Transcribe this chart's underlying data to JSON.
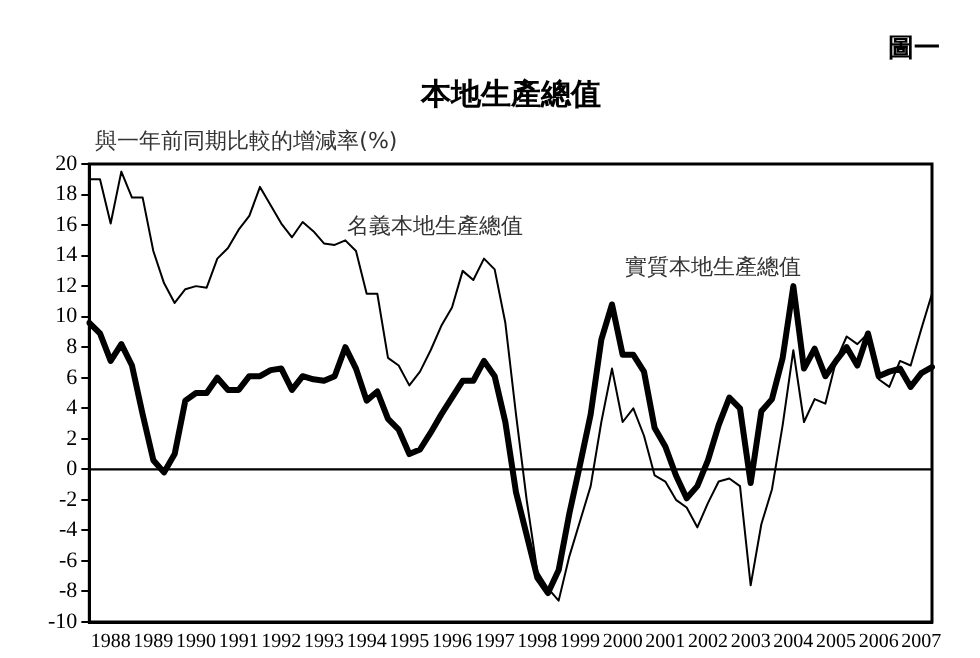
{
  "chart_data": {
    "type": "line",
    "title": "本地生產總值",
    "ylabel": "與一年前同期比較的增減率(%)",
    "annotations": [
      "圖一"
    ],
    "categories": [
      null,
      null,
      "1988",
      null,
      null,
      null,
      "1989",
      null,
      null,
      null,
      "1990",
      null,
      null,
      null,
      "1991",
      null,
      null,
      null,
      "1992",
      null,
      null,
      null,
      "1993",
      null,
      null,
      null,
      "1994",
      null,
      null,
      null,
      "1995",
      null,
      null,
      null,
      "1996",
      null,
      null,
      null,
      "1997",
      null,
      null,
      null,
      "1998",
      null,
      null,
      null,
      "1999",
      null,
      null,
      null,
      "2000",
      null,
      null,
      null,
      "2001",
      null,
      null,
      null,
      "2002",
      null,
      null,
      null,
      "2003",
      null,
      null,
      null,
      "2004",
      null,
      null,
      null,
      "2005",
      null,
      null,
      null,
      "2006",
      null,
      null,
      null,
      "2007",
      null
    ],
    "series": [
      {
        "name": "名義本地生產總值",
        "color": "#000000",
        "values": [
          19.0,
          19.0,
          16.1,
          19.5,
          17.8,
          17.8,
          14.3,
          12.2,
          10.9,
          11.8,
          12.0,
          11.9,
          13.8,
          14.5,
          15.7,
          16.6,
          18.5,
          17.3,
          16.1,
          15.2,
          16.2,
          15.6,
          14.8,
          14.7,
          15.0,
          14.3,
          11.5,
          11.5,
          7.3,
          6.8,
          5.5,
          6.4,
          7.8,
          9.4,
          10.6,
          13.0,
          12.4,
          13.8,
          13.1,
          9.6,
          3.6,
          -2.0,
          -6.7,
          -7.8,
          -8.6,
          -5.7,
          -3.4,
          -1.1,
          3.1,
          6.6,
          3.1,
          4.0,
          2.2,
          -0.4,
          -0.8,
          -2.0,
          -2.5,
          -3.8,
          -2.2,
          -0.8,
          -0.6,
          -1.1,
          -7.6,
          -3.6,
          -1.3,
          2.9,
          7.8,
          3.1,
          4.6,
          4.3,
          7.1,
          8.7,
          8.2,
          8.9,
          5.9,
          5.4,
          7.1,
          6.8,
          9.2,
          11.5
        ]
      },
      {
        "name": "實質本地生產總值",
        "color": "#000000",
        "values": [
          9.6,
          8.9,
          7.1,
          8.2,
          6.8,
          3.6,
          0.6,
          -0.2,
          1.0,
          4.5,
          5.0,
          5.0,
          6.0,
          5.2,
          5.2,
          6.1,
          6.1,
          6.5,
          6.6,
          5.2,
          6.1,
          5.9,
          5.8,
          6.1,
          8.0,
          6.6,
          4.5,
          5.1,
          3.3,
          2.6,
          1.0,
          1.3,
          2.4,
          3.6,
          4.7,
          5.8,
          5.8,
          7.1,
          6.1,
          3.1,
          -1.5,
          -4.3,
          -7.1,
          -8.1,
          -6.6,
          -2.9,
          0.3,
          3.6,
          8.5,
          10.8,
          7.5,
          7.5,
          6.4,
          2.7,
          1.5,
          -0.4,
          -1.9,
          -1.1,
          0.6,
          2.9,
          4.7,
          4.0,
          -0.9,
          3.8,
          4.6,
          7.3,
          12.0,
          6.6,
          7.9,
          6.1,
          7.1,
          8.0,
          6.8,
          8.9,
          6.1,
          6.4,
          6.6,
          5.4,
          6.3,
          6.7
        ]
      }
    ],
    "ylim": [
      -10,
      20
    ],
    "yticks": [
      -10,
      -8,
      -6,
      -4,
      -2,
      0,
      2,
      4,
      6,
      8,
      10,
      12,
      14,
      16,
      18,
      20
    ],
    "ref_lines": [
      {
        "axis": "y",
        "value": 0,
        "color": "#000000"
      }
    ],
    "grid": false,
    "legend": false,
    "marker": "none",
    "line_style": "solid"
  }
}
